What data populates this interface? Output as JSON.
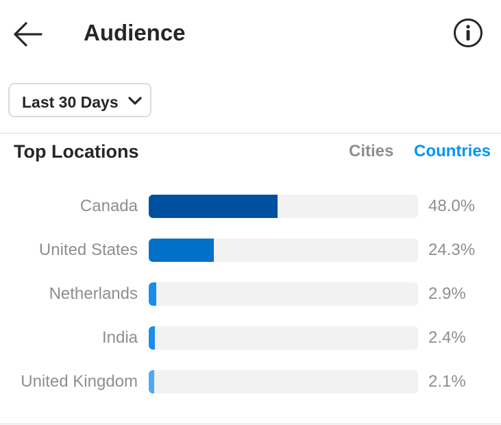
{
  "header": {
    "title": "Audience",
    "back_icon": "arrow-left-icon",
    "info_icon": "info-circle-icon"
  },
  "filter": {
    "selected": "Last 30 Days",
    "icon": "chevron-down-icon"
  },
  "top_locations": {
    "title": "Top Locations",
    "tabs": [
      {
        "label": "Cities",
        "active": false
      },
      {
        "label": "Countries",
        "active": true
      }
    ],
    "rows": [
      {
        "name": "Canada",
        "percent": "48.0%",
        "value": 48.0,
        "color": "#0050a0"
      },
      {
        "name": "United States",
        "percent": "24.3%",
        "value": 24.3,
        "color": "#0070c9"
      },
      {
        "name": "Netherlands",
        "percent": "2.9%",
        "value": 2.9,
        "color": "#1a8cf0"
      },
      {
        "name": "India",
        "percent": "2.4%",
        "value": 2.4,
        "color": "#1a8cf0"
      },
      {
        "name": "United Kingdom",
        "percent": "2.1%",
        "value": 2.1,
        "color": "#4ba9f5"
      }
    ]
  },
  "colors": {
    "accent": "#0095f6",
    "muted_text": "#8e8e8e",
    "track": "#f2f2f2"
  }
}
